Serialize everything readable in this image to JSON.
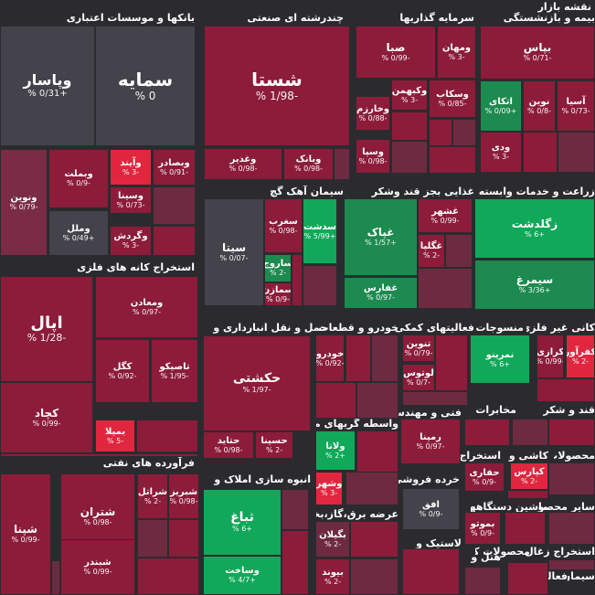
{
  "title": "نقشه بازار",
  "colors": {
    "red1": "#8c1c3a",
    "red2": "#6e2a40",
    "red3": "#7a2b45",
    "gray": "#44424a",
    "green1": "#11a85a",
    "green2": "#1d8a4f",
    "bright": "#e0273f",
    "bg": "#2b2b2f"
  },
  "sectors": [
    "بانکها و موسسات اعتباری",
    "چندرشته ای صنعتی",
    "سرمایه گذاریها",
    "بیمه و بازنشستگی",
    "سیمان آهک گچ",
    "غذایی بجز قند وشکر",
    "زراعت و خدمات وابسته",
    "استخراج کانه های فلزی",
    "حمل و نقل انبارداری و",
    "خودرو و قطعات",
    "فعالیتهای کمکی",
    "منسوجات",
    "کانی غیر فلزی",
    "واسطه گریهای مالی",
    "فنی و مهندسی",
    "مخابرات",
    "قند و شکر",
    "فرآورده های نفتی",
    "انبوه سازی املاک و",
    "عرضه برق،گاز،بخار و",
    "خرده فروشی",
    "استخراج",
    "کاشی و",
    "محصولات",
    "ماشین",
    "دستگاهها",
    "سایر",
    "محصو",
    "لاستیک و",
    "هتل و",
    "استخراج زغال",
    "محصولات کاغذی",
    "فعالیت",
    "سیمان"
  ],
  "tiles": [
    {
      "name": "سمایه",
      "pct": "0 %"
    },
    {
      "name": "وپاسار",
      "pct": "+0/31 %"
    },
    {
      "name": "ونوین",
      "pct": "-0/79 %"
    },
    {
      "name": "وبملت",
      "pct": "-0/9 %"
    },
    {
      "name": "وآیند",
      "pct": "-3 %"
    },
    {
      "name": "وبصادر",
      "pct": "-0/91 %"
    },
    {
      "name": "وسینا",
      "pct": "-0/73 %"
    },
    {
      "name": "وملل",
      "pct": "+0/49 %"
    },
    {
      "name": "وگردش",
      "pct": "-3 %"
    },
    {
      "name": "شستا",
      "pct": "-1/98 %"
    },
    {
      "name": "وغدیر",
      "pct": "-0/98 %"
    },
    {
      "name": "وبانک",
      "pct": "-0/98 %"
    },
    {
      "name": "صبا",
      "pct": "-0/99 %"
    },
    {
      "name": "ومهان",
      "pct": "-3 %"
    },
    {
      "name": "وکبهمن",
      "pct": "-3 %"
    },
    {
      "name": "وسکاب",
      "pct": "-0/85 %"
    },
    {
      "name": "وخارزم",
      "pct": "-0/88 %"
    },
    {
      "name": "وسپا",
      "pct": "-0/98 %"
    },
    {
      "name": "بپاس",
      "pct": "-0/71 %"
    },
    {
      "name": "اتکای",
      "pct": "+0/09 %"
    },
    {
      "name": "نوین",
      "pct": "-0/8 %"
    },
    {
      "name": "آسیا",
      "pct": "-0/73 %"
    },
    {
      "name": "ودی",
      "pct": "-3 %"
    },
    {
      "name": "سیتا",
      "pct": "-0/07 %"
    },
    {
      "name": "سغرب",
      "pct": "-0/98 %"
    },
    {
      "name": "سدشت",
      "pct": "+5/99 %"
    },
    {
      "name": "ساروج",
      "pct": "-2 %"
    },
    {
      "name": "سمازن",
      "pct": "-0/9 %"
    },
    {
      "name": "غپاک",
      "pct": "+1/57 %"
    },
    {
      "name": "غشهر",
      "pct": "-0/99 %"
    },
    {
      "name": "غگلپا",
      "pct": "-2 %"
    },
    {
      "name": "غفارس",
      "pct": "-0/97 %"
    },
    {
      "name": "زگلدشت",
      "pct": "+6 %"
    },
    {
      "name": "سیمرغ",
      "pct": "+3/36 %"
    },
    {
      "name": "اپال",
      "pct": "-1/28 %"
    },
    {
      "name": "ومعادن",
      "pct": "-0/97 %"
    },
    {
      "name": "کگل",
      "pct": "-0/92 %"
    },
    {
      "name": "تاصیکو",
      "pct": "-1/95 %"
    },
    {
      "name": "کچاد",
      "pct": "-0/99 %"
    },
    {
      "name": "بمیلا",
      "pct": "-5 %"
    },
    {
      "name": "حکشتی",
      "pct": "-1/97 %"
    },
    {
      "name": "حتاید",
      "pct": "-0/98 %"
    },
    {
      "name": "حسینا",
      "pct": "-2 %"
    },
    {
      "name": "خودرو",
      "pct": "-0/92 %"
    },
    {
      "name": "تنوین",
      "pct": "-0/79 %"
    },
    {
      "name": "لوتوس",
      "pct": "-0/7 %"
    },
    {
      "name": "نمرینو",
      "pct": "+6 %"
    },
    {
      "name": "کرازی",
      "pct": "-0/99 %"
    },
    {
      "name": "کفرآور",
      "pct": "-2 %"
    },
    {
      "name": "ولانا",
      "pct": "+2 %"
    },
    {
      "name": "وشهر",
      "pct": "-3 %"
    },
    {
      "name": "رمپنا",
      "pct": "-0/97 %"
    },
    {
      "name": "حفاری",
      "pct": "-0/9 %"
    },
    {
      "name": "کپارس",
      "pct": "-2 %"
    },
    {
      "name": "شپنا",
      "pct": "-0/99 %"
    },
    {
      "name": "شتران",
      "pct": "-0/98 %"
    },
    {
      "name": "شراتل",
      "pct": "-2 %"
    },
    {
      "name": "شبریز",
      "pct": "-0/98 %"
    },
    {
      "name": "شبندر",
      "pct": "-0/99 %"
    },
    {
      "name": "ثباغ",
      "pct": "+6 %"
    },
    {
      "name": "وساخت",
      "pct": "+4/7 %"
    },
    {
      "name": "بگیلان",
      "pct": "-2 %"
    },
    {
      "name": "بیوند",
      "pct": "-2 %"
    },
    {
      "name": "افق",
      "pct": "-0/9 %"
    },
    {
      "name": "بموتو",
      "pct": "-0/9 %"
    }
  ]
}
